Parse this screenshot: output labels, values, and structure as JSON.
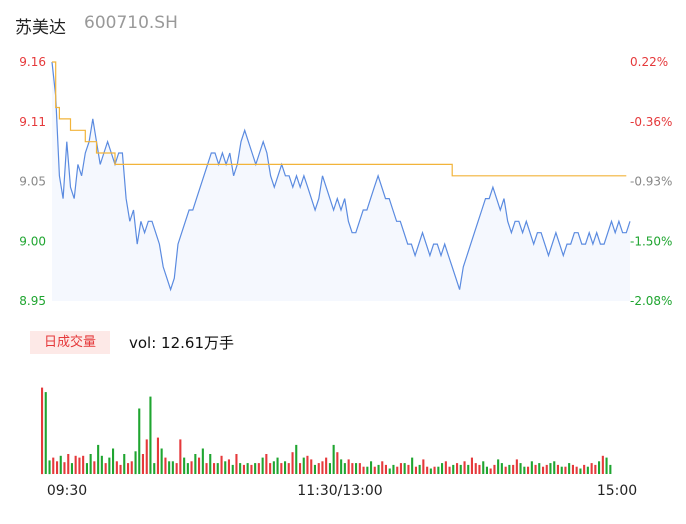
{
  "header": {
    "name": "苏美达",
    "code": "600710.SH"
  },
  "volume_panel": {
    "badge": "日成交量",
    "vol_text": "vol: 12.61万手"
  },
  "colors": {
    "price_line": "#5b8be0",
    "avg_line": "#f2b43a",
    "up": "#e5393b",
    "down": "#1fa530",
    "area_fill": "#f5f8fe",
    "axis_text_neutral": "#888888"
  },
  "chart_data": [
    {
      "type": "line",
      "title": "",
      "ylim": [
        8.95,
        9.16
      ],
      "y_ticks_left": [
        "9.16",
        "9.11",
        "9.05",
        "9.00",
        "8.95"
      ],
      "y_ticks_right": [
        "0.22%",
        "-0.36%",
        "-0.93%",
        "-1.50%",
        "-2.08%"
      ],
      "x_ticks": [
        "09:30",
        "11:30/13:00",
        "15:00"
      ],
      "series": [
        {
          "values": [
            9.16,
            9.13,
            9.06,
            9.04,
            9.09,
            9.05,
            9.04,
            9.07,
            9.06,
            9.08,
            9.09,
            9.11,
            9.09,
            9.07,
            9.08,
            9.09,
            9.08,
            9.07,
            9.08,
            9.08,
            9.04,
            9.02,
            9.03,
            9.0,
            9.02,
            9.01,
            9.02,
            9.02,
            9.01,
            9.0,
            8.98,
            8.97,
            8.96,
            8.97,
            9.0,
            9.01,
            9.02,
            9.03,
            9.03,
            9.04,
            9.05,
            9.06,
            9.07,
            9.08,
            9.08,
            9.07,
            9.08,
            9.07,
            9.08,
            9.06,
            9.07,
            9.09,
            9.1,
            9.09,
            9.08,
            9.07,
            9.08,
            9.09,
            9.08,
            9.06,
            9.05,
            9.06,
            9.07,
            9.06,
            9.06,
            9.05,
            9.06,
            9.05,
            9.06,
            9.05,
            9.04,
            9.03,
            9.04,
            9.06,
            9.05,
            9.04,
            9.03,
            9.04,
            9.03,
            9.04,
            9.02,
            9.01,
            9.01,
            9.02,
            9.03,
            9.03,
            9.04,
            9.05,
            9.06,
            9.05,
            9.04,
            9.04,
            9.03,
            9.02,
            9.02,
            9.01,
            9.0,
            9.0,
            8.99,
            9.0,
            9.01,
            9.0,
            8.99,
            9.0,
            9.0,
            8.99,
            9.0,
            8.99,
            8.98,
            8.97,
            8.96,
            8.98,
            8.99,
            9.0,
            9.01,
            9.02,
            9.03,
            9.04,
            9.04,
            9.05,
            9.04,
            9.03,
            9.04,
            9.02,
            9.01,
            9.02,
            9.02,
            9.01,
            9.02,
            9.01,
            9.0,
            9.01,
            9.01,
            9.0,
            8.99,
            9.0,
            9.01,
            9.0,
            8.99,
            9.0,
            9.0,
            9.01,
            9.01,
            9.0,
            9.0,
            9.01,
            9.0,
            9.01,
            9.0,
            9.0,
            9.01,
            9.02,
            9.01,
            9.02,
            9.01,
            9.01,
            9.02
          ]
        },
        {
          "values": [
            9.16,
            9.12,
            9.11,
            9.11,
            9.11,
            9.1,
            9.1,
            9.1,
            9.1,
            9.09,
            9.09,
            9.09,
            9.08,
            9.08,
            9.08,
            9.08,
            9.08,
            9.07,
            9.07,
            9.07,
            9.07,
            9.07,
            9.07,
            9.07,
            9.07,
            9.07,
            9.07,
            9.07,
            9.07,
            9.07,
            9.07,
            9.07,
            9.07,
            9.07,
            9.07,
            9.07,
            9.07,
            9.07,
            9.07,
            9.07,
            9.07,
            9.07,
            9.07,
            9.07,
            9.07,
            9.07,
            9.07,
            9.07,
            9.07,
            9.07,
            9.07,
            9.07,
            9.07,
            9.07,
            9.07,
            9.07,
            9.07,
            9.07,
            9.07,
            9.07,
            9.07,
            9.07,
            9.07,
            9.07,
            9.07,
            9.07,
            9.07,
            9.07,
            9.07,
            9.07,
            9.07,
            9.07,
            9.07,
            9.07,
            9.07,
            9.07,
            9.07,
            9.07,
            9.07,
            9.07,
            9.07,
            9.07,
            9.07,
            9.07,
            9.07,
            9.07,
            9.07,
            9.07,
            9.07,
            9.07,
            9.07,
            9.07,
            9.07,
            9.07,
            9.07,
            9.07,
            9.07,
            9.07,
            9.07,
            9.07,
            9.07,
            9.07,
            9.07,
            9.07,
            9.07,
            9.07,
            9.07,
            9.07,
            9.06,
            9.06,
            9.06,
            9.06,
            9.06,
            9.06,
            9.06,
            9.06,
            9.06,
            9.06,
            9.06,
            9.06,
            9.06,
            9.06,
            9.06,
            9.06,
            9.06,
            9.06,
            9.06,
            9.06,
            9.06,
            9.06,
            9.06,
            9.06,
            9.06,
            9.06,
            9.06,
            9.06,
            9.06,
            9.06,
            9.06,
            9.06,
            9.06,
            9.06,
            9.06,
            9.06,
            9.06,
            9.06,
            9.06,
            9.06,
            9.06,
            9.06,
            9.06,
            9.06,
            9.06,
            9.06,
            9.06,
            9.06
          ]
        }
      ]
    },
    {
      "type": "bar",
      "title": "",
      "values": [
        95,
        90,
        15,
        18,
        14,
        20,
        13,
        22,
        12,
        20,
        18,
        20,
        12,
        22,
        14,
        32,
        20,
        12,
        18,
        28,
        14,
        10,
        22,
        12,
        14,
        25,
        72,
        22,
        38,
        85,
        12,
        40,
        28,
        18,
        14,
        14,
        12,
        38,
        18,
        12,
        14,
        22,
        18,
        28,
        12,
        22,
        12,
        12,
        20,
        14,
        16,
        10,
        22,
        12,
        10,
        12,
        10,
        12,
        12,
        18,
        22,
        12,
        14,
        18,
        12,
        14,
        12,
        24,
        32,
        12,
        18,
        20,
        16,
        10,
        12,
        14,
        18,
        12,
        32,
        24,
        16,
        12,
        16,
        12,
        12,
        12,
        8,
        8,
        14,
        8,
        10,
        14,
        10,
        6,
        10,
        8,
        12,
        12,
        10,
        18,
        8,
        10,
        16,
        8,
        6,
        8,
        8,
        12,
        14,
        8,
        10,
        12,
        10,
        14,
        10,
        18,
        12,
        10,
        14,
        8,
        6,
        10,
        16,
        12,
        8,
        10,
        10,
        16,
        12,
        8,
        8,
        14,
        10,
        12,
        8,
        10,
        12,
        14,
        10,
        8,
        8,
        12,
        10,
        8,
        6,
        10,
        8,
        12,
        10,
        14,
        20,
        18,
        10
      ],
      "colors": [
        "up",
        "down",
        "down",
        "up",
        "up",
        "down",
        "up",
        "up",
        "down",
        "up",
        "up",
        "up",
        "down",
        "down",
        "up",
        "down",
        "down",
        "up",
        "down",
        "down",
        "up",
        "up",
        "down",
        "up",
        "up",
        "down",
        "down",
        "up",
        "up",
        "down",
        "down",
        "up",
        "down",
        "up",
        "down",
        "down",
        "up",
        "up",
        "down",
        "down",
        "up",
        "down",
        "up",
        "down",
        "up",
        "down",
        "up",
        "down",
        "up",
        "down",
        "up",
        "down",
        "up",
        "down",
        "up",
        "down",
        "up",
        "down",
        "up",
        "down",
        "up",
        "up",
        "down",
        "down",
        "up",
        "down",
        "up",
        "up",
        "down",
        "up",
        "down",
        "up",
        "up",
        "down",
        "up",
        "up",
        "up",
        "down",
        "down",
        "up",
        "down",
        "down",
        "up",
        "up",
        "down",
        "up",
        "up",
        "down",
        "down",
        "up",
        "down",
        "up",
        "up",
        "down",
        "down",
        "up",
        "up",
        "down",
        "up",
        "down",
        "up",
        "down",
        "up",
        "up",
        "down",
        "up",
        "down",
        "down",
        "up",
        "up",
        "down",
        "up",
        "down",
        "up",
        "down",
        "up",
        "up",
        "up",
        "down",
        "down",
        "up",
        "up",
        "down",
        "down",
        "up",
        "down",
        "up",
        "up",
        "down",
        "down",
        "up",
        "down",
        "up",
        "down",
        "up",
        "up",
        "down",
        "down",
        "up",
        "down",
        "up",
        "down",
        "up",
        "up",
        "down",
        "up",
        "down",
        "up",
        "up",
        "down",
        "up",
        "down",
        "down"
      ],
      "ylim": [
        0,
        100
      ]
    }
  ]
}
